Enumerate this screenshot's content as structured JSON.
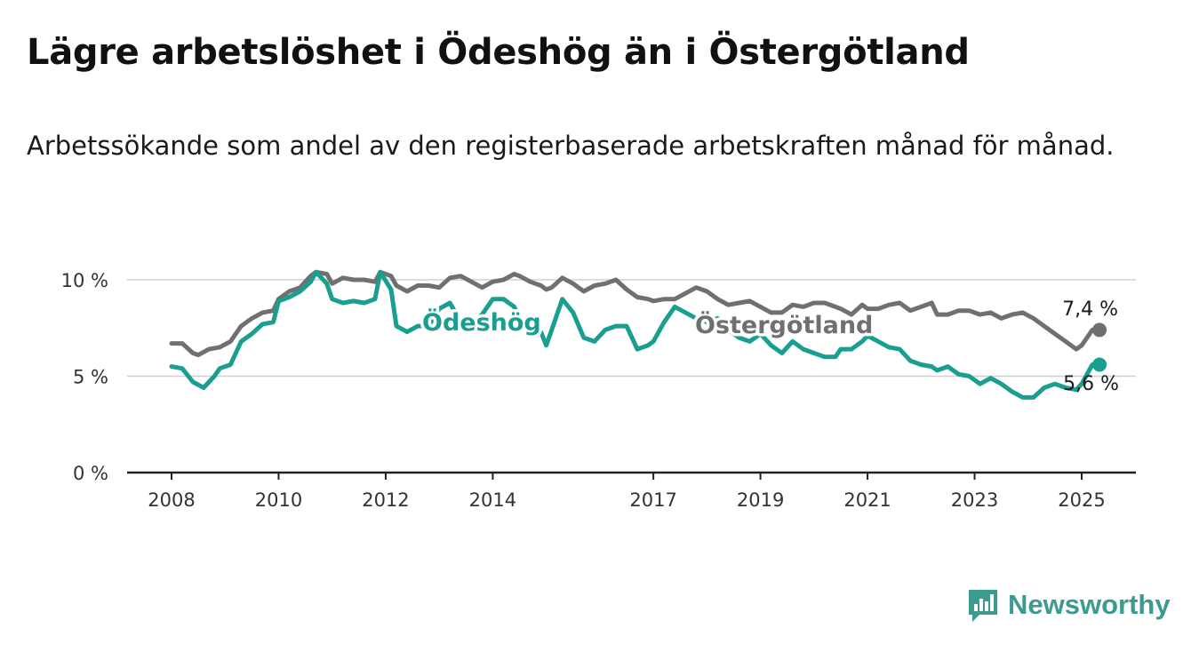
{
  "colors": {
    "odeshog": "#1a9e8f",
    "ostergotland": "#707070",
    "grid": "#d0d0d0",
    "axis": "#222222",
    "brand": "#3d9a8f"
  },
  "brand": {
    "name": "Newsworthy",
    "icon": "bar-chart-logo-icon"
  },
  "chart_data": {
    "type": "line",
    "title": "Lägre arbetslöshet i Ödeshög än i Östergötland",
    "subtitle": "Arbetssökande som andel av den registerbaserade arbetskraften månad för månad.",
    "xlabel": "",
    "ylabel": "",
    "xlim": [
      2008,
      2025.2
    ],
    "ylim": [
      0,
      10
    ],
    "yticks": [
      0,
      5,
      10
    ],
    "ytick_labels": [
      "0 %",
      "5 %",
      "10 %"
    ],
    "xticks": [
      2008,
      2010,
      2012,
      2014,
      2017,
      2019,
      2021,
      2023,
      2025
    ],
    "xtick_labels": [
      "2008",
      "2010",
      "2012",
      "2014",
      "2017",
      "2019",
      "2021",
      "2023",
      "2025"
    ],
    "grid": true,
    "legend": "inline labels",
    "series": [
      {
        "name": "Östergötland",
        "color": "#707070",
        "end_label": "7,4 %",
        "points": [
          [
            2008,
            6.7
          ],
          [
            2008.2,
            6.7
          ],
          [
            2008.4,
            6.2
          ],
          [
            2008.5,
            6.1
          ],
          [
            2008.7,
            6.4
          ],
          [
            2008.9,
            6.5
          ],
          [
            2009.1,
            6.8
          ],
          [
            2009.3,
            7.6
          ],
          [
            2009.5,
            8.0
          ],
          [
            2009.7,
            8.3
          ],
          [
            2009.9,
            8.4
          ],
          [
            2010,
            9.0
          ],
          [
            2010.2,
            9.4
          ],
          [
            2010.4,
            9.6
          ],
          [
            2010.6,
            10.2
          ],
          [
            2010.7,
            10.4
          ],
          [
            2010.9,
            10.3
          ],
          [
            2011,
            9.8
          ],
          [
            2011.2,
            10.1
          ],
          [
            2011.4,
            10.0
          ],
          [
            2011.6,
            10.0
          ],
          [
            2011.8,
            9.9
          ],
          [
            2011.9,
            10.4
          ],
          [
            2012.1,
            10.2
          ],
          [
            2012.2,
            9.7
          ],
          [
            2012.4,
            9.4
          ],
          [
            2012.6,
            9.7
          ],
          [
            2012.8,
            9.7
          ],
          [
            2013,
            9.6
          ],
          [
            2013.2,
            10.1
          ],
          [
            2013.4,
            10.2
          ],
          [
            2013.6,
            9.9
          ],
          [
            2013.8,
            9.6
          ],
          [
            2014,
            9.9
          ],
          [
            2014.2,
            10.0
          ],
          [
            2014.4,
            10.3
          ],
          [
            2014.5,
            10.2
          ],
          [
            2014.7,
            9.9
          ],
          [
            2014.9,
            9.7
          ],
          [
            2015,
            9.5
          ],
          [
            2015.1,
            9.6
          ],
          [
            2015.3,
            10.1
          ],
          [
            2015.5,
            9.8
          ],
          [
            2015.7,
            9.4
          ],
          [
            2015.9,
            9.7
          ],
          [
            2016.1,
            9.8
          ],
          [
            2016.3,
            10.0
          ],
          [
            2016.5,
            9.5
          ],
          [
            2016.7,
            9.1
          ],
          [
            2016.9,
            9.0
          ],
          [
            2017,
            8.9
          ],
          [
            2017.2,
            9.0
          ],
          [
            2017.4,
            9.0
          ],
          [
            2017.6,
            9.3
          ],
          [
            2017.8,
            9.6
          ],
          [
            2018,
            9.4
          ],
          [
            2018.2,
            9.0
          ],
          [
            2018.4,
            8.7
          ],
          [
            2018.6,
            8.8
          ],
          [
            2018.8,
            8.9
          ],
          [
            2019,
            8.6
          ],
          [
            2019.2,
            8.3
          ],
          [
            2019.4,
            8.3
          ],
          [
            2019.6,
            8.7
          ],
          [
            2019.8,
            8.6
          ],
          [
            2020,
            8.8
          ],
          [
            2020.2,
            8.8
          ],
          [
            2020.4,
            8.6
          ],
          [
            2020.5,
            8.5
          ],
          [
            2020.7,
            8.2
          ],
          [
            2020.9,
            8.7
          ],
          [
            2021,
            8.5
          ],
          [
            2021.2,
            8.5
          ],
          [
            2021.4,
            8.7
          ],
          [
            2021.6,
            8.8
          ],
          [
            2021.8,
            8.4
          ],
          [
            2022,
            8.6
          ],
          [
            2022.2,
            8.8
          ],
          [
            2022.3,
            8.2
          ],
          [
            2022.5,
            8.2
          ],
          [
            2022.7,
            8.4
          ],
          [
            2022.9,
            8.4
          ],
          [
            2023.1,
            8.2
          ],
          [
            2023.3,
            8.3
          ],
          [
            2023.5,
            8.0
          ],
          [
            2023.7,
            8.2
          ],
          [
            2023.9,
            8.3
          ],
          [
            2024.1,
            8.0
          ],
          [
            2024.3,
            7.6
          ],
          [
            2024.5,
            7.2
          ],
          [
            2024.7,
            6.8
          ],
          [
            2024.9,
            6.4
          ],
          [
            2025,
            6.6
          ],
          [
            2025.2,
            7.4
          ]
        ],
        "last_value": 7.4
      },
      {
        "name": "Ödeshög",
        "color": "#1a9e8f",
        "end_label": "5,6 %",
        "points": [
          [
            2008,
            5.5
          ],
          [
            2008.2,
            5.4
          ],
          [
            2008.4,
            4.7
          ],
          [
            2008.6,
            4.4
          ],
          [
            2008.8,
            5.0
          ],
          [
            2008.9,
            5.4
          ],
          [
            2009.1,
            5.6
          ],
          [
            2009.3,
            6.8
          ],
          [
            2009.5,
            7.2
          ],
          [
            2009.7,
            7.7
          ],
          [
            2009.9,
            7.8
          ],
          [
            2010,
            8.9
          ],
          [
            2010.2,
            9.1
          ],
          [
            2010.4,
            9.4
          ],
          [
            2010.6,
            9.9
          ],
          [
            2010.7,
            10.4
          ],
          [
            2010.9,
            9.8
          ],
          [
            2011,
            9.0
          ],
          [
            2011.2,
            8.8
          ],
          [
            2011.4,
            8.9
          ],
          [
            2011.6,
            8.8
          ],
          [
            2011.8,
            9.0
          ],
          [
            2011.9,
            10.4
          ],
          [
            2012.1,
            9.5
          ],
          [
            2012.2,
            7.6
          ],
          [
            2012.4,
            7.3
          ],
          [
            2012.6,
            7.6
          ],
          [
            2012.8,
            7.6
          ],
          [
            2013,
            8.5
          ],
          [
            2013.2,
            8.8
          ],
          [
            2013.4,
            7.8
          ],
          [
            2013.6,
            7.6
          ],
          [
            2013.8,
            8.2
          ],
          [
            2014,
            9.0
          ],
          [
            2014.2,
            9.0
          ],
          [
            2014.4,
            8.6
          ],
          [
            2014.5,
            8.0
          ],
          [
            2014.7,
            7.4
          ],
          [
            2014.9,
            7.3
          ],
          [
            2015,
            6.6
          ],
          [
            2015.1,
            7.4
          ],
          [
            2015.3,
            9.0
          ],
          [
            2015.5,
            8.3
          ],
          [
            2015.7,
            7.0
          ],
          [
            2015.9,
            6.8
          ],
          [
            2016.1,
            7.4
          ],
          [
            2016.3,
            7.6
          ],
          [
            2016.5,
            7.6
          ],
          [
            2016.7,
            6.4
          ],
          [
            2016.9,
            6.6
          ],
          [
            2017,
            6.8
          ],
          [
            2017.2,
            7.8
          ],
          [
            2017.4,
            8.6
          ],
          [
            2017.6,
            8.3
          ],
          [
            2017.8,
            8.0
          ],
          [
            2018,
            7.8
          ],
          [
            2018.2,
            8.0
          ],
          [
            2018.4,
            7.4
          ],
          [
            2018.6,
            7.0
          ],
          [
            2018.8,
            6.8
          ],
          [
            2019,
            7.2
          ],
          [
            2019.2,
            6.6
          ],
          [
            2019.4,
            6.2
          ],
          [
            2019.6,
            6.8
          ],
          [
            2019.8,
            6.4
          ],
          [
            2020,
            6.2
          ],
          [
            2020.2,
            6.0
          ],
          [
            2020.4,
            6.0
          ],
          [
            2020.5,
            6.4
          ],
          [
            2020.7,
            6.4
          ],
          [
            2020.9,
            6.8
          ],
          [
            2021,
            7.1
          ],
          [
            2021.2,
            6.8
          ],
          [
            2021.4,
            6.5
          ],
          [
            2021.6,
            6.4
          ],
          [
            2021.8,
            5.8
          ],
          [
            2022,
            5.6
          ],
          [
            2022.2,
            5.5
          ],
          [
            2022.3,
            5.3
          ],
          [
            2022.5,
            5.5
          ],
          [
            2022.7,
            5.1
          ],
          [
            2022.9,
            5.0
          ],
          [
            2023.1,
            4.6
          ],
          [
            2023.3,
            4.9
          ],
          [
            2023.5,
            4.6
          ],
          [
            2023.7,
            4.2
          ],
          [
            2023.9,
            3.9
          ],
          [
            2024.1,
            3.9
          ],
          [
            2024.3,
            4.4
          ],
          [
            2024.5,
            4.6
          ],
          [
            2024.7,
            4.4
          ],
          [
            2024.9,
            4.3
          ],
          [
            2025,
            4.6
          ],
          [
            2025.2,
            5.6
          ]
        ],
        "last_value": 5.6
      }
    ]
  }
}
